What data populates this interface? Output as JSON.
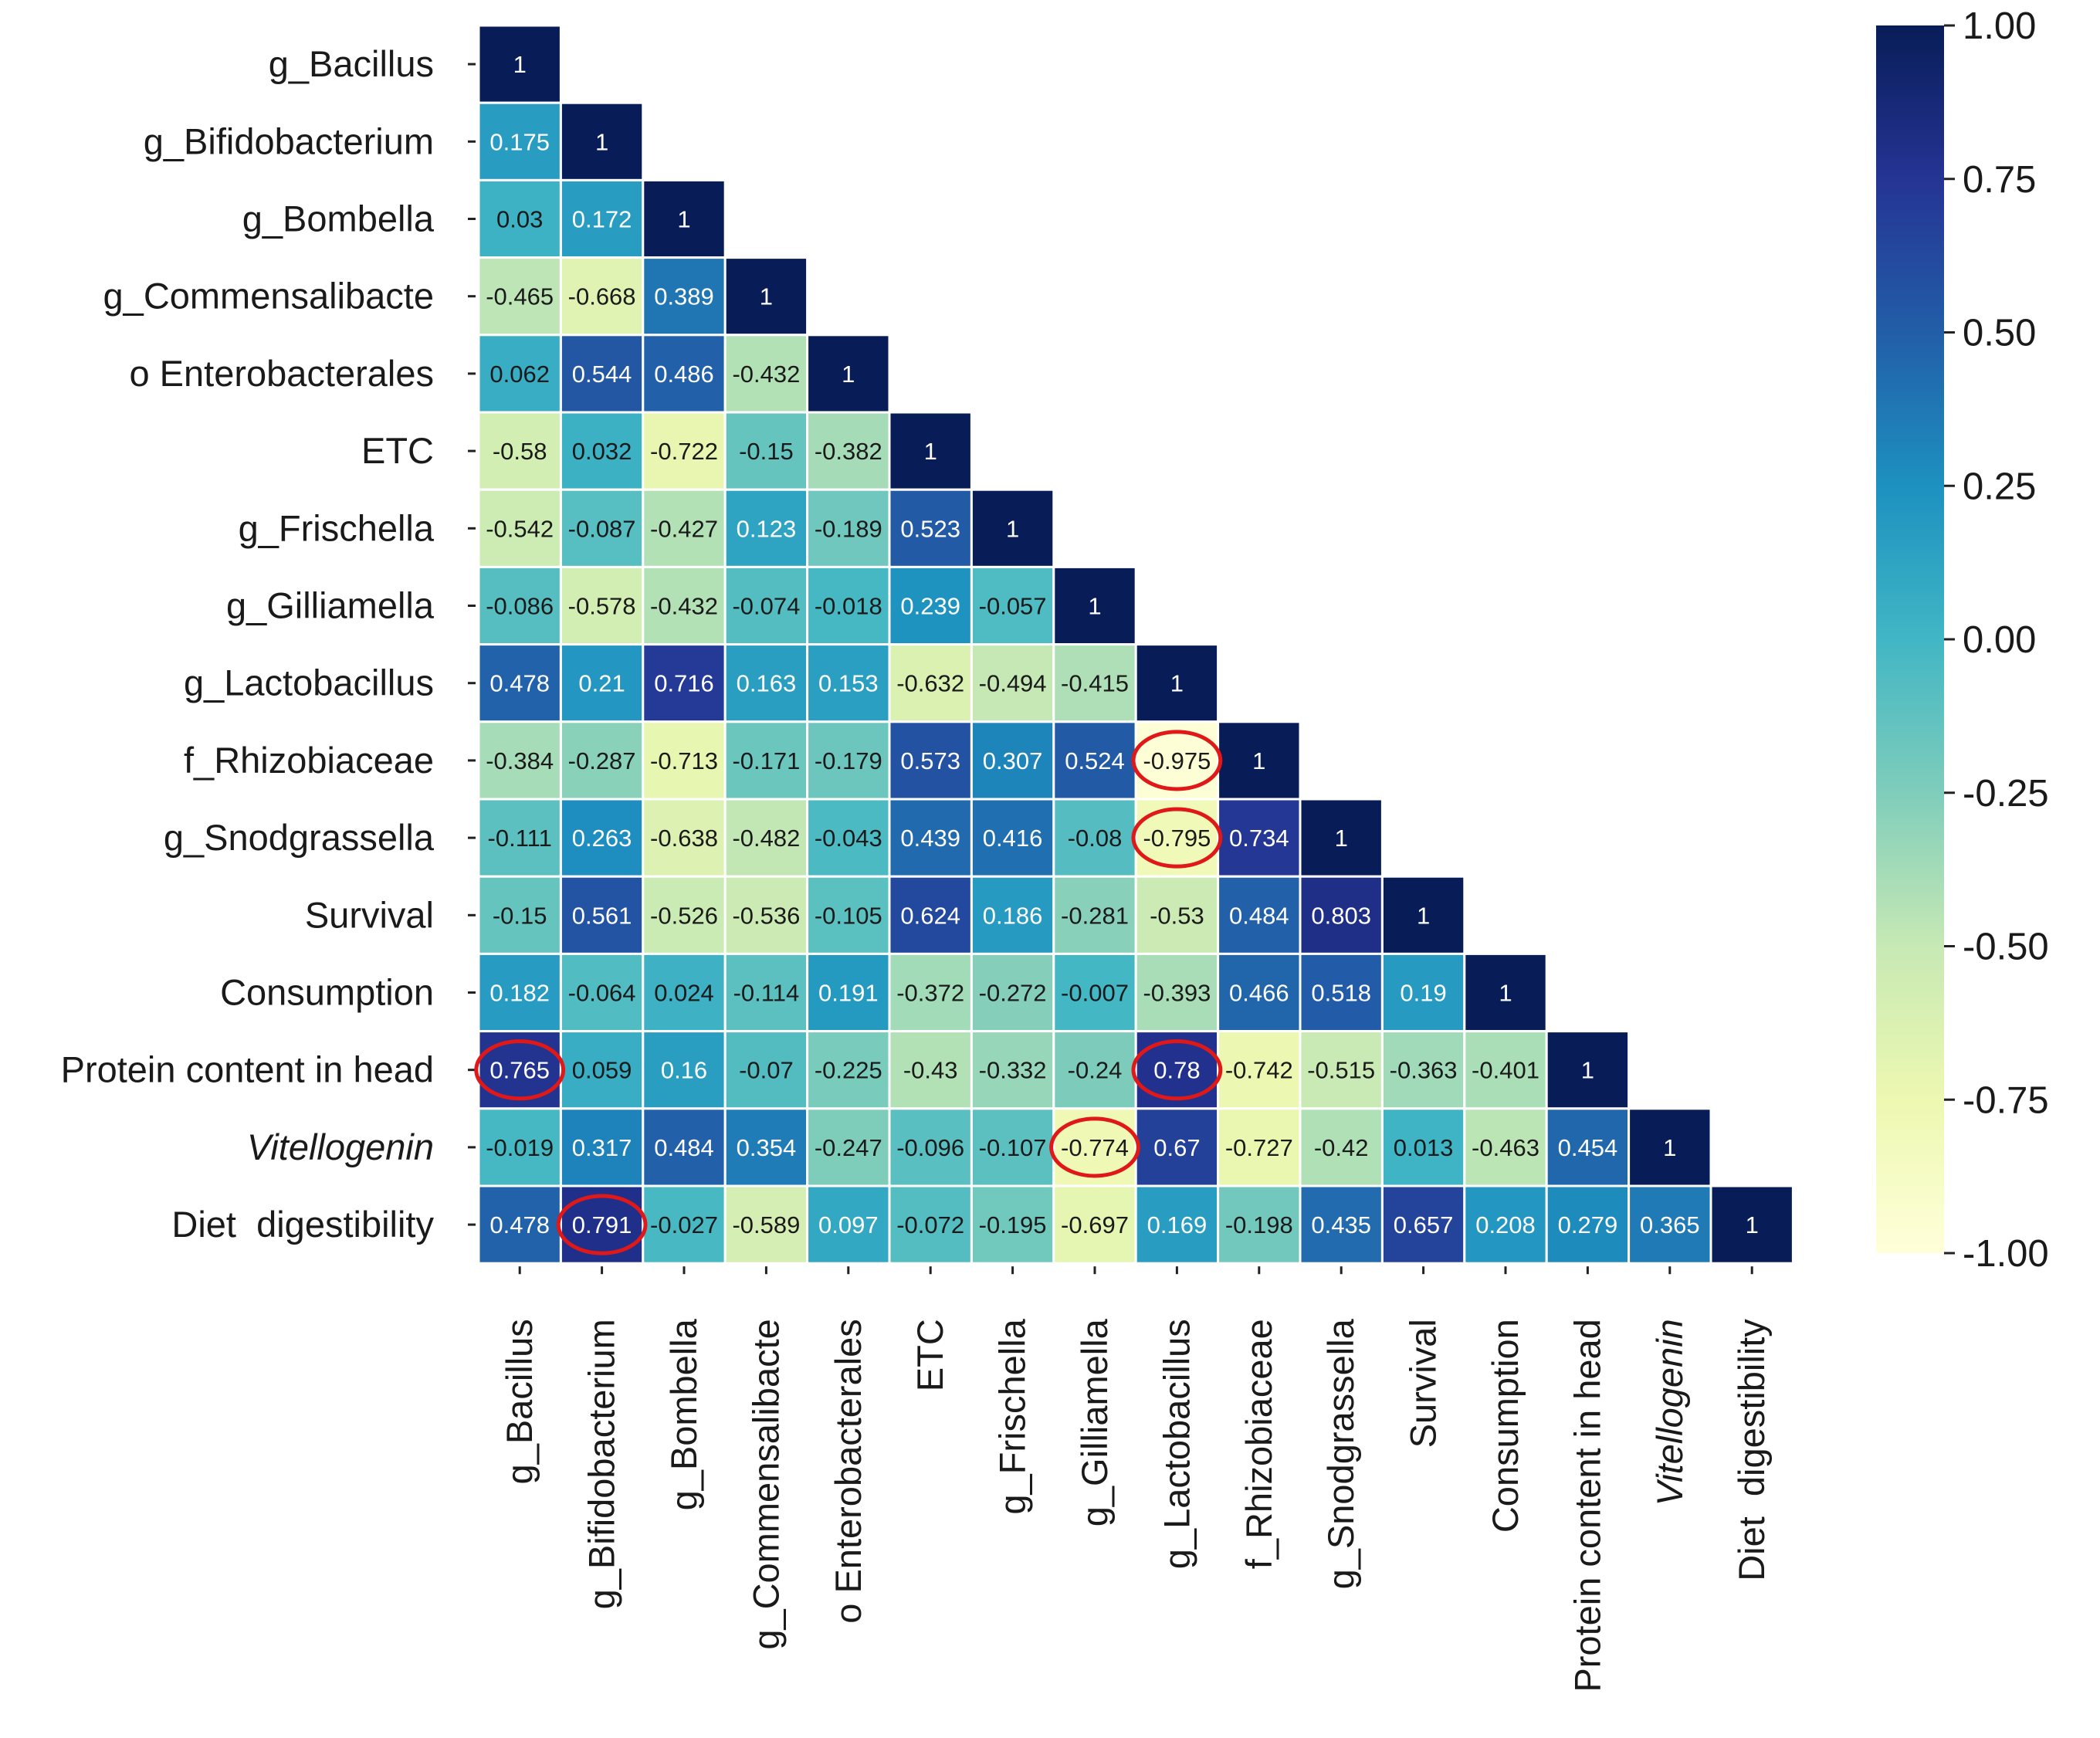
{
  "chart_data": {
    "type": "heatmap",
    "title": "",
    "variables": [
      {
        "label": "g_Bacillus",
        "italic": false
      },
      {
        "label": "g_Bifidobacterium",
        "italic": false
      },
      {
        "label": "g_Bombella",
        "italic": false
      },
      {
        "label": "g_Commensalibacte",
        "italic": false
      },
      {
        "label": "o Enterobacterales",
        "italic": false
      },
      {
        "label": "ETC",
        "italic": false
      },
      {
        "label": "g_Frischella",
        "italic": false
      },
      {
        "label": "g_Gilliamella",
        "italic": false
      },
      {
        "label": "g_Lactobacillus",
        "italic": false
      },
      {
        "label": "f_Rhizobiaceae",
        "italic": false
      },
      {
        "label": "g_Snodgrassella",
        "italic": false
      },
      {
        "label": "Survival",
        "italic": false
      },
      {
        "label": "Consumption",
        "italic": false
      },
      {
        "label": "Protein content in head",
        "italic": false
      },
      {
        "label": "Vitellogenin",
        "italic": true
      },
      {
        "label": "Diet  digestibility",
        "italic": false
      }
    ],
    "matrix": [
      [
        "1"
      ],
      [
        "0.175",
        "1"
      ],
      [
        "0.03",
        "0.172",
        "1"
      ],
      [
        "-0.465",
        "-0.668",
        "0.389",
        "1"
      ],
      [
        "0.062",
        "0.544",
        "0.486",
        "-0.432",
        "1"
      ],
      [
        "-0.58",
        "0.032",
        "-0.722",
        "-0.15",
        "-0.382",
        "1"
      ],
      [
        "-0.542",
        "-0.087",
        "-0.427",
        "0.123",
        "-0.189",
        "0.523",
        "1"
      ],
      [
        "-0.086",
        "-0.578",
        "-0.432",
        "-0.074",
        "-0.018",
        "0.239",
        "-0.057",
        "1"
      ],
      [
        "0.478",
        "0.21",
        "0.716",
        "0.163",
        "0.153",
        "-0.632",
        "-0.494",
        "-0.415",
        "1"
      ],
      [
        "-0.384",
        "-0.287",
        "-0.713",
        "-0.171",
        "-0.179",
        "0.573",
        "0.307",
        "0.524",
        "-0.975",
        "1"
      ],
      [
        "-0.111",
        "0.263",
        "-0.638",
        "-0.482",
        "-0.043",
        "0.439",
        "0.416",
        "-0.08",
        "-0.795",
        "0.734",
        "1"
      ],
      [
        "-0.15",
        "0.561",
        "-0.526",
        "-0.536",
        "-0.105",
        "0.624",
        "0.186",
        "-0.281",
        "-0.53",
        "0.484",
        "0.803",
        "1"
      ],
      [
        "0.182",
        "-0.064",
        "0.024",
        "-0.114",
        "0.191",
        "-0.372",
        "-0.272",
        "-0.007",
        "-0.393",
        "0.466",
        "0.518",
        "0.19",
        "1"
      ],
      [
        "0.765",
        "0.059",
        "0.16",
        "-0.07",
        "-0.225",
        "-0.43",
        "-0.332",
        "-0.24",
        "0.78",
        "-0.742",
        "-0.515",
        "-0.363",
        "-0.401",
        "1"
      ],
      [
        "-0.019",
        "0.317",
        "0.484",
        "0.354",
        "-0.247",
        "-0.096",
        "-0.107",
        "-0.774",
        "0.67",
        "-0.727",
        "-0.42",
        "0.013",
        "-0.463",
        "0.454",
        "1"
      ],
      [
        "0.478",
        "0.791",
        "-0.027",
        "-0.589",
        "0.097",
        "-0.072",
        "-0.195",
        "-0.697",
        "0.169",
        "-0.198",
        "0.435",
        "0.657",
        "0.208",
        "0.279",
        "0.365",
        "1"
      ]
    ],
    "highlighted_cells": [
      [
        9,
        8
      ],
      [
        10,
        8
      ],
      [
        13,
        0
      ],
      [
        13,
        8
      ],
      [
        14,
        7
      ],
      [
        15,
        1
      ]
    ],
    "highlight_color": "#e01818",
    "colorbar": {
      "min": -1.0,
      "max": 1.0,
      "ticks": [
        "1.00",
        "0.75",
        "0.50",
        "0.25",
        "0.00",
        "-0.25",
        "-0.50",
        "-0.75",
        "-1.00"
      ],
      "colormap": "YlGnBu",
      "stops": [
        "#ffffd9",
        "#edf8b1",
        "#c7e9b4",
        "#7fcdbb",
        "#41b6c4",
        "#1d91c0",
        "#225ea8",
        "#253494",
        "#081d58"
      ]
    },
    "cell_border_color": "#ffffff",
    "xlabel": "",
    "ylabel": ""
  }
}
